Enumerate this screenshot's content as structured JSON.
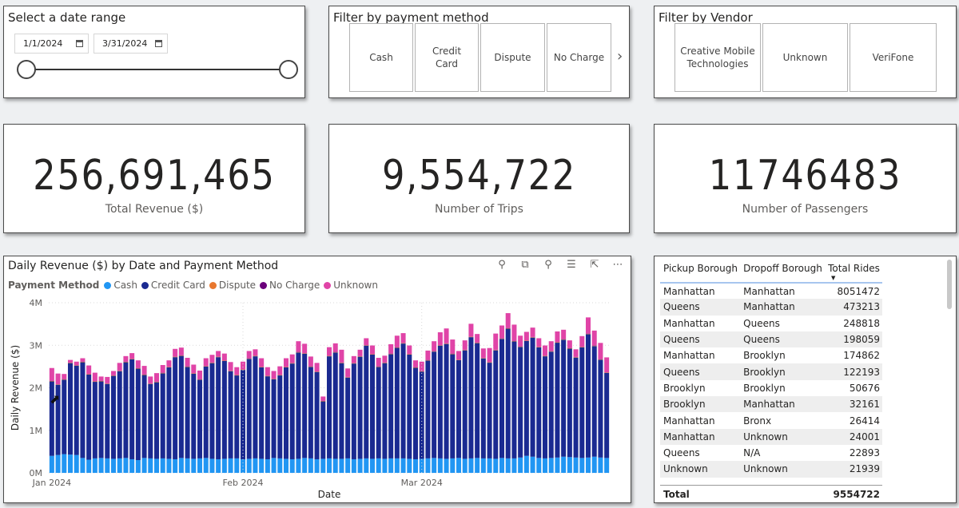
{
  "date_slicer": {
    "title": "Select a date range",
    "start": "1/1/2024",
    "end": "3/31/2024"
  },
  "payment_slicer": {
    "title": "Filter by payment method",
    "tiles": [
      "Cash",
      "Credit Card",
      "Dispute",
      "No Charge"
    ],
    "next_icon": "chevron-right-icon"
  },
  "vendor_slicer": {
    "title": "Filter by Vendor",
    "tiles": [
      "Creative Mobile Technologies",
      "Unknown",
      "VeriFone"
    ]
  },
  "kpis": [
    {
      "value": "256,691,465",
      "label": "Total Revenue ($)"
    },
    {
      "value": "9,554,722",
      "label": "Number of Trips"
    },
    {
      "value": "11746483",
      "label": "Number of Passengers"
    }
  ],
  "chart": {
    "title": "Daily Revenue ($) by Date and Payment Method",
    "legend_title": "Payment Method",
    "tool_icons": [
      "pin-icon",
      "copy-icon",
      "bell-icon",
      "filter-icon",
      "focus-mode-icon",
      "more-options-icon"
    ]
  },
  "chart_data": {
    "type": "bar",
    "stacked": true,
    "xlabel": "Date",
    "ylabel": "Daily Revenue ($)",
    "ylim": [
      0,
      4000000
    ],
    "yticks": [
      "0M",
      "1M",
      "2M",
      "3M",
      "4M"
    ],
    "xticks": [
      "Jan 2024",
      "Feb 2024",
      "Mar 2024"
    ],
    "grid": true,
    "legend_position": "top-left",
    "x_start": "2024-01-01",
    "x_end": "2024-03-31",
    "series": [
      {
        "name": "Cash",
        "color": "#2196f3",
        "values": [
          400000,
          420000,
          440000,
          430000,
          420000,
          350000,
          310000,
          340000,
          350000,
          340000,
          330000,
          340000,
          350000,
          320000,
          300000,
          350000,
          340000,
          330000,
          340000,
          330000,
          320000,
          350000,
          340000,
          330000,
          340000,
          350000,
          330000,
          320000,
          330000,
          340000,
          340000,
          320000,
          330000,
          340000,
          330000,
          320000,
          350000,
          340000,
          330000,
          320000,
          330000,
          350000,
          340000,
          320000,
          330000,
          340000,
          330000,
          330000,
          340000,
          320000,
          330000,
          340000,
          330000,
          340000,
          330000,
          340000,
          340000,
          340000,
          330000,
          320000,
          330000,
          340000,
          350000,
          340000,
          330000,
          340000,
          350000,
          330000,
          340000,
          350000,
          340000,
          340000,
          330000,
          350000,
          340000,
          340000,
          360000,
          400000,
          380000,
          350000,
          340000,
          350000,
          360000,
          380000,
          370000,
          360000,
          350000,
          360000,
          380000,
          360000,
          350000
        ]
      },
      {
        "name": "Credit Card",
        "color": "#1a2a91",
        "values": [
          1750000,
          1650000,
          1750000,
          2150000,
          2100000,
          2250000,
          2000000,
          1800000,
          1800000,
          1750000,
          1950000,
          2050000,
          2250000,
          2350000,
          2150000,
          1950000,
          1750000,
          1800000,
          2000000,
          2150000,
          2400000,
          2400000,
          2150000,
          2000000,
          1850000,
          2150000,
          2250000,
          2400000,
          2300000,
          2050000,
          1950000,
          2100000,
          2350000,
          2400000,
          2150000,
          1950000,
          1850000,
          1950000,
          2150000,
          2250000,
          2500000,
          2450000,
          2150000,
          2050000,
          1350000,
          2400000,
          2500000,
          2250000,
          1900000,
          2250000,
          2400000,
          2650000,
          2450000,
          2150000,
          2250000,
          2450000,
          2600000,
          2700000,
          2450000,
          2150000,
          2050000,
          2300000,
          2500000,
          2650000,
          2700000,
          2450000,
          2300000,
          2550000,
          2850000,
          2700000,
          2350000,
          2250000,
          2550000,
          2800000,
          3050000,
          2750000,
          2600000,
          2700000,
          2800000,
          2600000,
          2400000,
          2500000,
          2700000,
          2750000,
          2550000,
          2350000,
          2600000,
          2900000,
          2600000,
          2300000,
          2000000
        ]
      },
      {
        "name": "Dispute",
        "color": "#e8772e",
        "values": [
          10000,
          10000,
          10000,
          10000,
          10000,
          10000,
          10000,
          10000,
          10000,
          10000,
          10000,
          10000,
          10000,
          10000,
          10000,
          10000,
          10000,
          10000,
          10000,
          10000,
          10000,
          10000,
          10000,
          10000,
          10000,
          10000,
          10000,
          10000,
          10000,
          10000,
          10000,
          10000,
          10000,
          10000,
          10000,
          10000,
          10000,
          10000,
          10000,
          10000,
          10000,
          10000,
          10000,
          10000,
          10000,
          10000,
          10000,
          10000,
          10000,
          10000,
          10000,
          10000,
          10000,
          10000,
          10000,
          10000,
          10000,
          10000,
          10000,
          10000,
          10000,
          10000,
          10000,
          10000,
          10000,
          10000,
          10000,
          10000,
          10000,
          10000,
          10000,
          10000,
          10000,
          10000,
          10000,
          10000,
          10000,
          10000,
          10000,
          10000,
          10000,
          10000,
          10000,
          10000,
          10000,
          10000,
          10000,
          10000,
          10000,
          10000,
          10000
        ]
      },
      {
        "name": "No Charge",
        "color": "#6b007b",
        "values": [
          5000,
          5000,
          5000,
          5000,
          5000,
          5000,
          5000,
          5000,
          5000,
          5000,
          5000,
          5000,
          5000,
          5000,
          5000,
          5000,
          5000,
          5000,
          5000,
          5000,
          5000,
          5000,
          5000,
          5000,
          5000,
          5000,
          5000,
          5000,
          5000,
          5000,
          5000,
          5000,
          5000,
          5000,
          5000,
          5000,
          5000,
          5000,
          5000,
          5000,
          5000,
          5000,
          5000,
          5000,
          5000,
          5000,
          5000,
          5000,
          5000,
          5000,
          5000,
          5000,
          5000,
          5000,
          5000,
          5000,
          5000,
          5000,
          5000,
          5000,
          5000,
          5000,
          5000,
          5000,
          5000,
          5000,
          5000,
          5000,
          5000,
          5000,
          5000,
          5000,
          5000,
          5000,
          5000,
          5000,
          5000,
          5000,
          5000,
          5000,
          5000,
          5000,
          5000,
          5000,
          5000,
          5000,
          5000,
          5000,
          5000,
          5000,
          5000
        ]
      },
      {
        "name": "Unknown",
        "color": "#e044a7",
        "values": [
          300000,
          250000,
          120000,
          60000,
          80000,
          80000,
          200000,
          200000,
          100000,
          150000,
          100000,
          180000,
          130000,
          130000,
          180000,
          200000,
          160000,
          200000,
          180000,
          150000,
          180000,
          180000,
          200000,
          200000,
          200000,
          180000,
          180000,
          130000,
          160000,
          200000,
          180000,
          180000,
          170000,
          150000,
          200000,
          200000,
          180000,
          200000,
          200000,
          200000,
          250000,
          220000,
          230000,
          200000,
          100000,
          200000,
          200000,
          300000,
          200000,
          160000,
          150000,
          160000,
          200000,
          200000,
          160000,
          220000,
          270000,
          230000,
          200000,
          160000,
          220000,
          220000,
          230000,
          300000,
          350000,
          330000,
          200000,
          220000,
          300000,
          200000,
          220000,
          330000,
          380000,
          300000,
          350000,
          380000,
          250000,
          200000,
          220000,
          200000,
          240000,
          230000,
          250000,
          220000,
          180000,
          180000,
          250000,
          380000,
          350000,
          380000,
          350000
        ]
      }
    ]
  },
  "table": {
    "headers": [
      "Pickup Borough",
      "Dropoff Borough",
      "Total Rides"
    ],
    "rows": [
      [
        "Manhattan",
        "Manhattan",
        "8051472"
      ],
      [
        "Queens",
        "Manhattan",
        "473213"
      ],
      [
        "Manhattan",
        "Queens",
        "248818"
      ],
      [
        "Queens",
        "Queens",
        "198059"
      ],
      [
        "Manhattan",
        "Brooklyn",
        "174862"
      ],
      [
        "Queens",
        "Brooklyn",
        "122193"
      ],
      [
        "Brooklyn",
        "Brooklyn",
        "50676"
      ],
      [
        "Brooklyn",
        "Manhattan",
        "32161"
      ],
      [
        "Manhattan",
        "Bronx",
        "26414"
      ],
      [
        "Manhattan",
        "Unknown",
        "24001"
      ],
      [
        "Queens",
        "N/A",
        "22893"
      ],
      [
        "Unknown",
        "Unknown",
        "21939"
      ]
    ],
    "total_label": "Total",
    "total_value": "9554722"
  }
}
